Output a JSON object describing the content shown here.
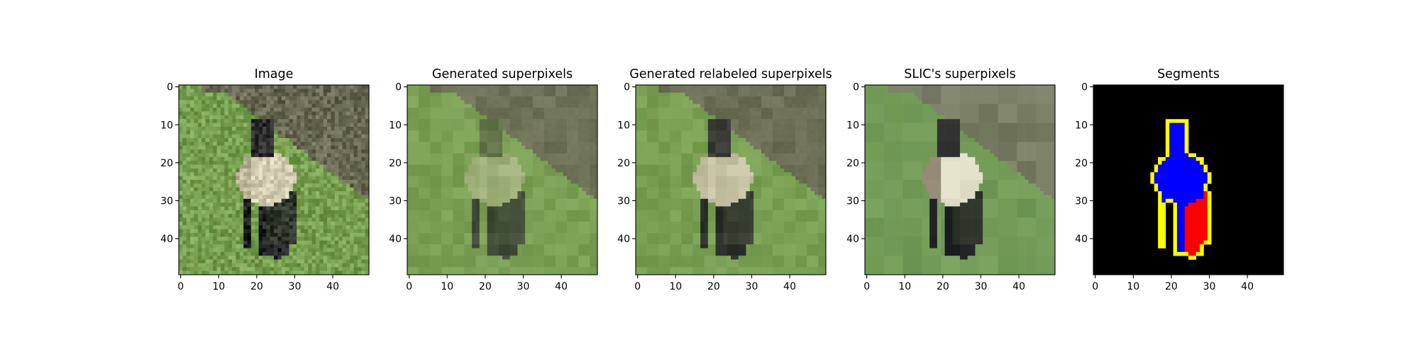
{
  "figure": {
    "panels": [
      {
        "id": "image",
        "title": "Image",
        "image_kind": "sheep-photo"
      },
      {
        "id": "generated",
        "title": "Generated superpixels",
        "image_kind": "sheep-superpixels-blurry"
      },
      {
        "id": "relabeled",
        "title": "Generated relabeled superpixels",
        "image_kind": "sheep-superpixels-relabeled"
      },
      {
        "id": "slic",
        "title": "SLIC's superpixels",
        "image_kind": "sheep-superpixels-slic"
      },
      {
        "id": "segments",
        "title": "Segments",
        "image_kind": "segment-mask"
      }
    ],
    "axes": {
      "x_ticks": [
        "0",
        "10",
        "20",
        "30",
        "40"
      ],
      "y_ticks": [
        "0",
        "10",
        "20",
        "30",
        "40"
      ],
      "x_range": [
        -0.5,
        49.5
      ],
      "y_range": [
        -0.5,
        49.5
      ]
    },
    "colors": {
      "segment_background": "#000000",
      "segment_body": "#0000ff",
      "segment_legs": "#ff0000",
      "segment_boundary": "#ffff00",
      "grass": "#7a9e4e",
      "hillside": "#6b6a55",
      "sheep_wool": "#d8d2b8",
      "sheep_head": "#2e2e2e"
    }
  }
}
